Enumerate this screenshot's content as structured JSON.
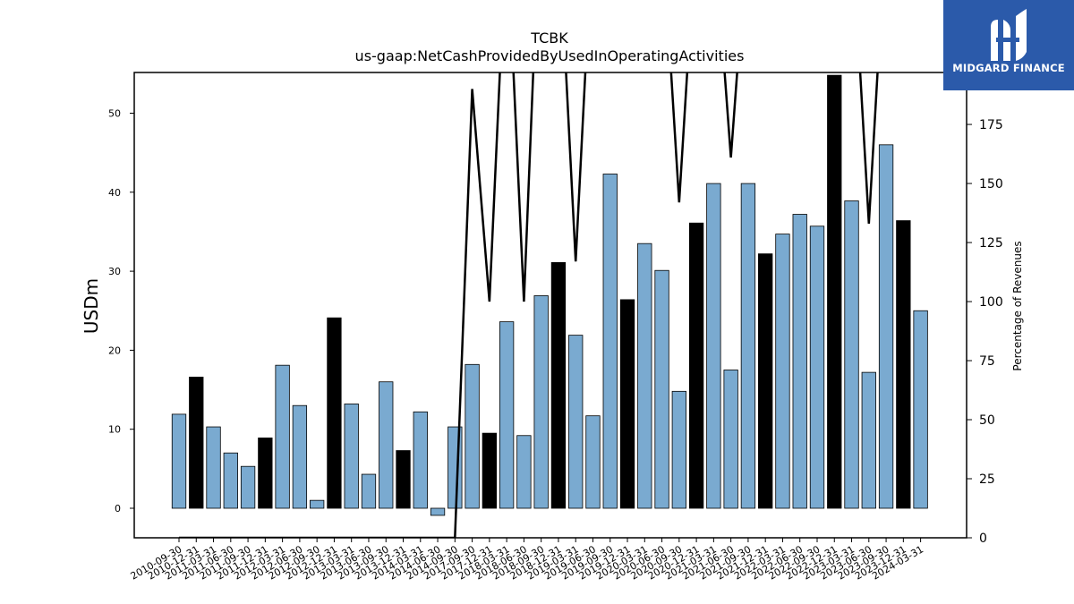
{
  "chart_data": {
    "type": "bar",
    "title": "TCBK",
    "subtitle": "us-gaap:NetCashProvidedByUsedInOperatingActivities",
    "ylabel": "USDm",
    "y2label": "Percentage of Revenues",
    "ylim": [
      -3.7,
      55.2
    ],
    "y2lim": [
      0,
      197
    ],
    "yticks": [
      0,
      10,
      20,
      30,
      40,
      50
    ],
    "y2ticks": [
      0,
      25,
      50,
      75,
      100,
      125,
      150,
      175
    ],
    "categories": [
      "2010-09-30",
      "2010-12-31",
      "2011-03-31",
      "2011-06-30",
      "2011-09-30",
      "2011-12-31",
      "2012-03-31",
      "2012-06-30",
      "2012-09-30",
      "2012-12-31",
      "2013-03-31",
      "2013-06-30",
      "2013-09-30",
      "2013-12-31",
      "2014-03-31",
      "2014-06-30",
      "2014-09-30",
      "2017-09-30",
      "2017-12-31",
      "2018-03-31",
      "2018-06-30",
      "2018-09-30",
      "2018-12-31",
      "2019-03-31",
      "2019-06-30",
      "2019-09-30",
      "2019-12-31",
      "2020-03-31",
      "2020-06-30",
      "2020-09-30",
      "2020-12-31",
      "2021-03-31",
      "2021-06-30",
      "2021-09-30",
      "2021-12-31",
      "2022-03-31",
      "2022-06-30",
      "2022-09-30",
      "2022-12-31",
      "2023-03-31",
      "2023-06-30",
      "2023-09-30",
      "2023-12-31",
      "2024-03-31"
    ],
    "values": [
      11.9,
      16.6,
      10.3,
      7.0,
      5.3,
      8.9,
      18.1,
      13.0,
      1.0,
      24.1,
      13.2,
      4.3,
      16.0,
      7.3,
      12.2,
      -0.9,
      10.3,
      18.2,
      9.5,
      23.6,
      9.2,
      26.9,
      31.1,
      21.9,
      11.7,
      42.3,
      26.4,
      33.5,
      30.1,
      14.8,
      36.1,
      41.1,
      17.5,
      41.1,
      32.2,
      34.7,
      37.2,
      35.7,
      54.8,
      38.9,
      17.2,
      46.0,
      36.4,
      25.0
    ],
    "highlight": [
      false,
      true,
      false,
      false,
      false,
      true,
      false,
      false,
      false,
      true,
      false,
      false,
      false,
      true,
      false,
      false,
      false,
      false,
      true,
      false,
      false,
      false,
      true,
      false,
      false,
      false,
      true,
      false,
      false,
      false,
      true,
      false,
      false,
      false,
      true,
      false,
      false,
      false,
      true,
      false,
      false,
      false,
      true,
      false
    ],
    "line_values": [
      0,
      0,
      0,
      0,
      0,
      0,
      0,
      0,
      0,
      0,
      0,
      0,
      0,
      0,
      0,
      0,
      0,
      190,
      100,
      260,
      100,
      280,
      260,
      117,
      260,
      260,
      260,
      260,
      260,
      142,
      260,
      260,
      161,
      260,
      260,
      260,
      260,
      260,
      260,
      260,
      133,
      260,
      260,
      197
    ],
    "colors": {
      "bar": "#7aaad0",
      "bar_highlight": "#000000",
      "line": "#000000",
      "edge": "#000000"
    },
    "grid": false,
    "legend": "none"
  },
  "logo": {
    "text": "MIDGARD FINANCE"
  }
}
